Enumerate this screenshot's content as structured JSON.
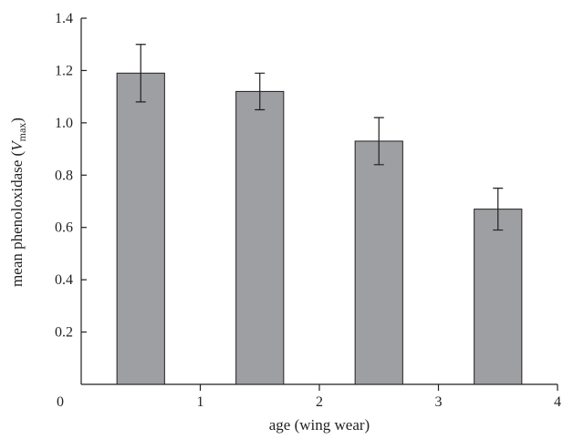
{
  "chart_data": {
    "type": "bar",
    "title": "",
    "xlabel": "age (wing wear)",
    "ylabel": "mean phenoloxidase (V",
    "ylabel_italic": "V",
    "ylabel_subscript": "max",
    "xlim": [
      0,
      4
    ],
    "ylim": [
      0,
      1.4
    ],
    "xticks": [
      0,
      1,
      2,
      3,
      4
    ],
    "yticks": [
      0.2,
      0.4,
      0.6,
      0.8,
      1.0,
      1.2,
      1.4
    ],
    "ytick_labels": [
      "0.2",
      "0.4",
      "0.6",
      "0.8",
      "1.0",
      "1.2",
      "1.4"
    ],
    "xtick_labels": [
      "0",
      "1",
      "2",
      "3",
      "4"
    ],
    "grid": false,
    "bar_color": "#9d9fa2",
    "bars": [
      {
        "x": 0.5,
        "value": 1.19,
        "err_low": 1.08,
        "err_high": 1.3
      },
      {
        "x": 1.5,
        "value": 1.12,
        "err_low": 1.05,
        "err_high": 1.19
      },
      {
        "x": 2.5,
        "value": 0.93,
        "err_low": 0.84,
        "err_high": 1.02
      },
      {
        "x": 3.5,
        "value": 0.67,
        "err_low": 0.59,
        "err_high": 0.75
      }
    ]
  }
}
